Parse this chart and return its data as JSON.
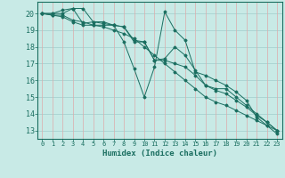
{
  "xlabel": "Humidex (Indice chaleur)",
  "bg_color": "#c8eae6",
  "grid_color": "#a0cccc",
  "line_color": "#1a6e60",
  "xlim": [
    -0.5,
    23.5
  ],
  "ylim": [
    12.5,
    20.7
  ],
  "yticks": [
    13,
    14,
    15,
    16,
    17,
    18,
    19,
    20
  ],
  "xticks": [
    0,
    1,
    2,
    3,
    4,
    5,
    6,
    7,
    8,
    9,
    10,
    11,
    12,
    13,
    14,
    15,
    16,
    17,
    18,
    19,
    20,
    21,
    22,
    23
  ],
  "lines": [
    [
      20.0,
      20.0,
      20.2,
      20.3,
      20.3,
      19.5,
      19.5,
      19.3,
      18.3,
      16.7,
      15.0,
      16.8,
      20.1,
      19.0,
      18.4,
      16.5,
      16.3,
      16.0,
      15.7,
      15.3,
      14.8,
      13.8,
      13.3,
      12.8
    ],
    [
      20.0,
      20.0,
      20.0,
      20.3,
      19.4,
      19.5,
      19.4,
      19.3,
      19.2,
      18.3,
      18.3,
      17.2,
      17.3,
      18.0,
      17.5,
      16.6,
      15.7,
      15.5,
      15.5,
      15.0,
      14.5,
      14.0,
      13.5,
      13.0
    ],
    [
      20.0,
      19.9,
      19.9,
      19.6,
      19.5,
      19.3,
      19.3,
      19.3,
      19.2,
      18.4,
      18.3,
      17.2,
      17.2,
      17.0,
      16.8,
      16.3,
      15.7,
      15.4,
      15.2,
      14.8,
      14.4,
      13.9,
      13.5,
      13.0
    ],
    [
      20.0,
      19.9,
      19.8,
      19.5,
      19.3,
      19.3,
      19.2,
      19.0,
      18.8,
      18.5,
      18.0,
      17.5,
      17.0,
      16.5,
      16.0,
      15.5,
      15.0,
      14.7,
      14.5,
      14.2,
      13.9,
      13.6,
      13.3,
      13.0
    ]
  ]
}
